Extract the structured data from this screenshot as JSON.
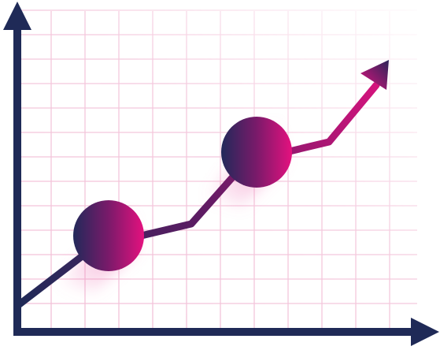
{
  "illustration": {
    "subject": "growth-line-chart-icon",
    "colors": {
      "navy": "#1f2a57",
      "magenta": "#d9127e",
      "purple": "#6a1a63",
      "grid": "#f2bfd7",
      "glow": "#f07ab8"
    },
    "has_grid": true,
    "markers": 2,
    "trend": "up"
  }
}
